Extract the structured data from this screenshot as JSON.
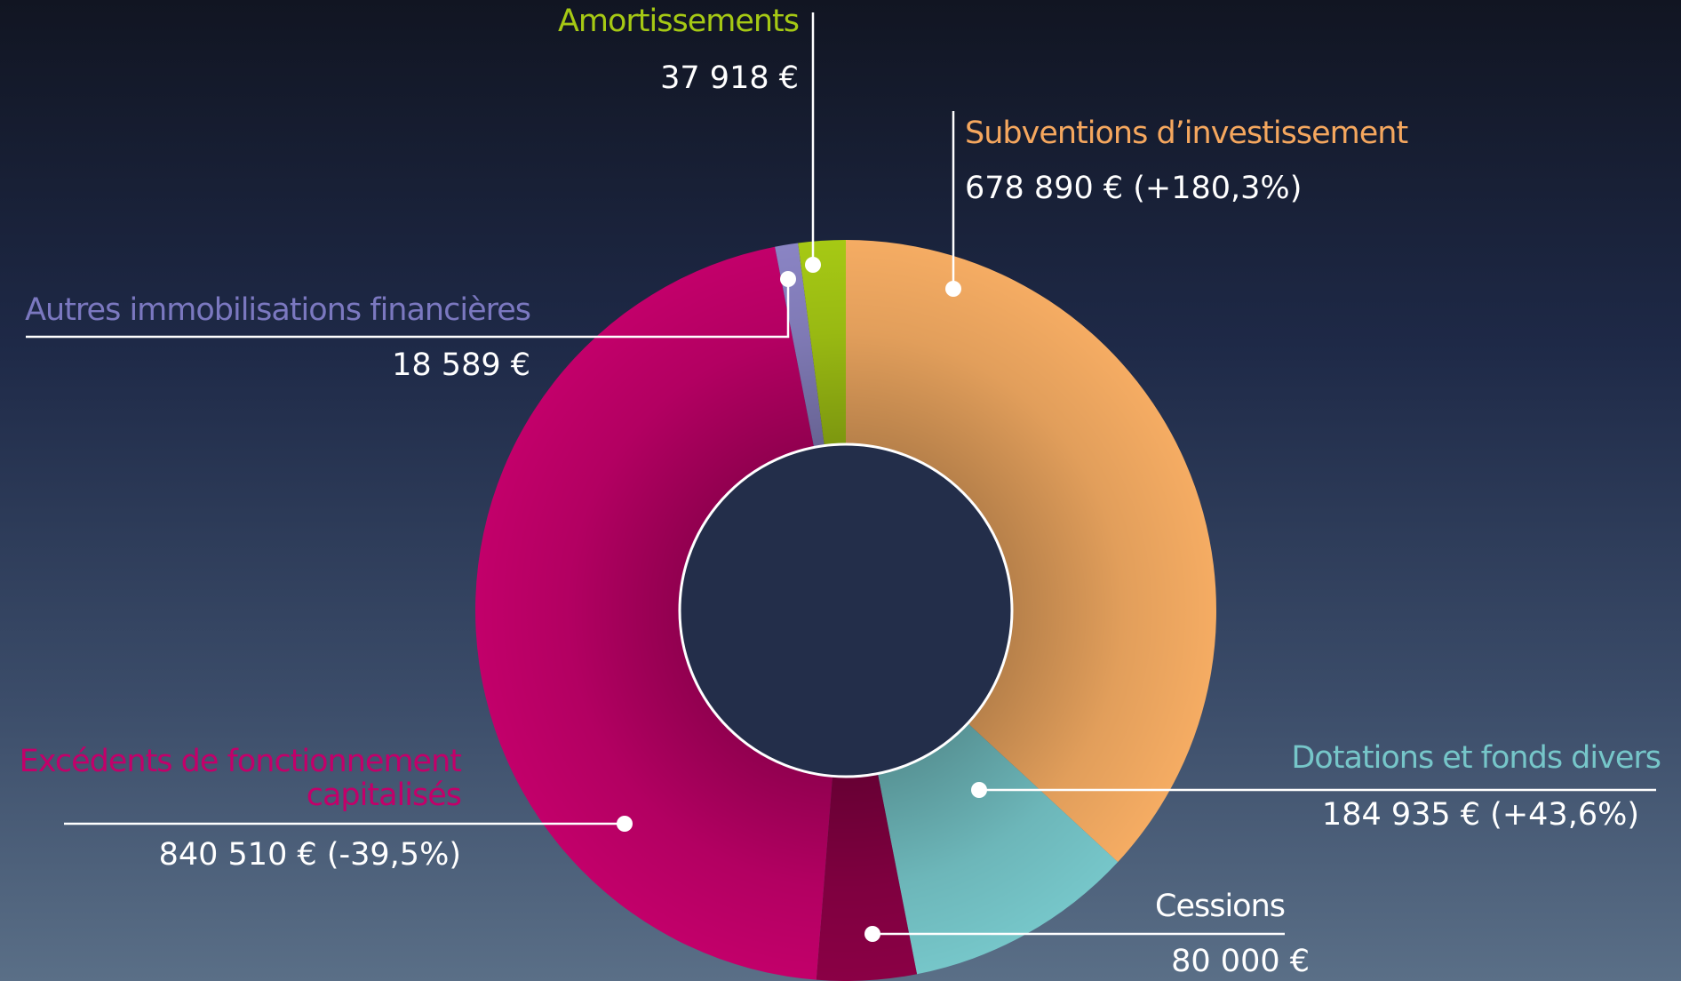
{
  "chart_data": {
    "type": "donut",
    "categories": [
      "Subventions d’investissement",
      "Dotations et fonds divers",
      "Cessions",
      "Excédents de fonctionnement capitalisés",
      "Autres immobilisations financières",
      "Amortissements"
    ],
    "values": [
      678890,
      184935,
      80000,
      840510,
      18589,
      37918
    ],
    "value_labels": [
      "678 890 € (+180,3%)",
      "184 935 € (+43,6%)",
      "80 000 €",
      "840 510 € (-39,5%)",
      "18 589 €",
      "37 918 €"
    ],
    "colors": [
      "#f5ac63",
      "#76c6c9",
      "#8a0045",
      "#c2006a",
      "#8a84c4",
      "#a6c914"
    ]
  }
}
